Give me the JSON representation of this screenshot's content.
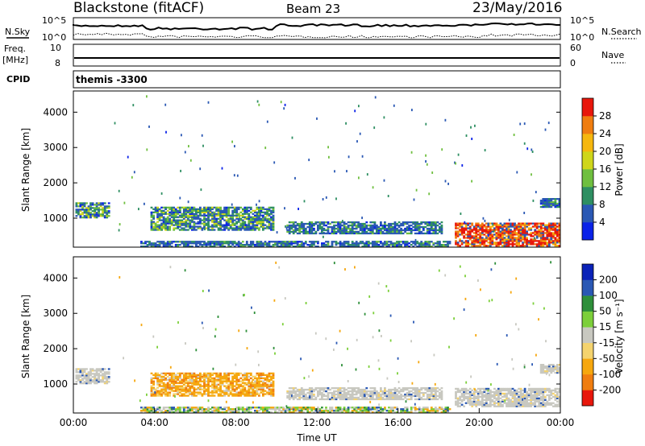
{
  "header": {
    "station": "Blackstone (fitACF)",
    "beam": "Beam 23",
    "date": "23/May/2016"
  },
  "top_panels": {
    "nsky_label": "N.Sky",
    "nsearch_label": "N.Search",
    "noise_ticks": [
      "10^5",
      "10^0"
    ],
    "freq_label_1": "Freq.",
    "freq_label_2": "[MHz]",
    "freq_ticks": [
      "10",
      "8"
    ],
    "nave_label": "Nave",
    "nave_ticks": [
      "60",
      "0"
    ],
    "cpid_label": "CPID",
    "cpid_value": "themis -3300"
  },
  "chart_data": [
    {
      "type": "heatmap",
      "title": "",
      "xlabel": "Time UT",
      "ylabel": "Slant Range [km]",
      "x_ticks": [
        "00:00",
        "04:00",
        "08:00",
        "12:00",
        "16:00",
        "20:00",
        "00:00"
      ],
      "y_ticks": [
        1000,
        2000,
        3000,
        4000
      ],
      "xlim": [
        0,
        24
      ],
      "ylim": [
        180,
        4600
      ],
      "colorbar": {
        "label": "Power [dB]",
        "ticks": [
          4,
          8,
          12,
          16,
          20,
          24,
          28
        ],
        "range": [
          0,
          32
        ],
        "colors": [
          "#0a22e8",
          "#2a58b4",
          "#2e8f62",
          "#6fbf3f",
          "#cfd61a",
          "#f6b70e",
          "#f07d10",
          "#e8170c"
        ]
      },
      "regions": [
        {
          "t0": 0.1,
          "t1": 1.8,
          "r0": 1000,
          "r1": 1450,
          "level": "mid"
        },
        {
          "t0": 3.8,
          "t1": 9.8,
          "r0": 650,
          "r1": 1320,
          "level": "mid"
        },
        {
          "t0": 10.5,
          "t1": 18.2,
          "r0": 550,
          "r1": 900,
          "level": "low"
        },
        {
          "t0": 18.8,
          "t1": 24.0,
          "r0": 200,
          "r1": 850,
          "level": "high"
        },
        {
          "t0": 3.3,
          "t1": 18.5,
          "r0": 180,
          "r1": 330,
          "level": "low"
        },
        {
          "t0": 23.0,
          "t1": 24.0,
          "r0": 1300,
          "r1": 1550,
          "level": "low"
        }
      ]
    },
    {
      "type": "heatmap",
      "title": "",
      "xlabel": "Time UT",
      "ylabel": "Slant Range [km]",
      "x_ticks": [
        "00:00",
        "04:00",
        "08:00",
        "12:00",
        "16:00",
        "20:00",
        "00:00"
      ],
      "y_ticks": [
        1000,
        2000,
        3000,
        4000
      ],
      "xlim": [
        0,
        24
      ],
      "ylim": [
        180,
        4600
      ],
      "colorbar": {
        "label": "Velocity [m s⁻¹]",
        "ticks": [
          200,
          100,
          50,
          15,
          -15,
          -50,
          -100,
          -200
        ],
        "range": [
          -250,
          250
        ],
        "colors": [
          "#e8170c",
          "#f07d10",
          "#f6a70e",
          "#f4d36e",
          "#c8c8c0",
          "#7ccf3a",
          "#2e8f3a",
          "#2a58b4",
          "#0a22b8"
        ]
      },
      "regions": [
        {
          "t0": 0.1,
          "t1": 1.8,
          "r0": 1000,
          "r1": 1450,
          "level": "ground"
        },
        {
          "t0": 3.8,
          "t1": 9.8,
          "r0": 650,
          "r1": 1320,
          "level": "neg"
        },
        {
          "t0": 10.5,
          "t1": 18.2,
          "r0": 550,
          "r1": 900,
          "level": "ground"
        },
        {
          "t0": 18.8,
          "t1": 24.0,
          "r0": 350,
          "r1": 850,
          "level": "ground"
        },
        {
          "t0": 3.3,
          "t1": 18.5,
          "r0": 180,
          "r1": 330,
          "level": "mixed"
        },
        {
          "t0": 23.0,
          "t1": 24.0,
          "r0": 1300,
          "r1": 1550,
          "level": "ground"
        }
      ]
    }
  ]
}
